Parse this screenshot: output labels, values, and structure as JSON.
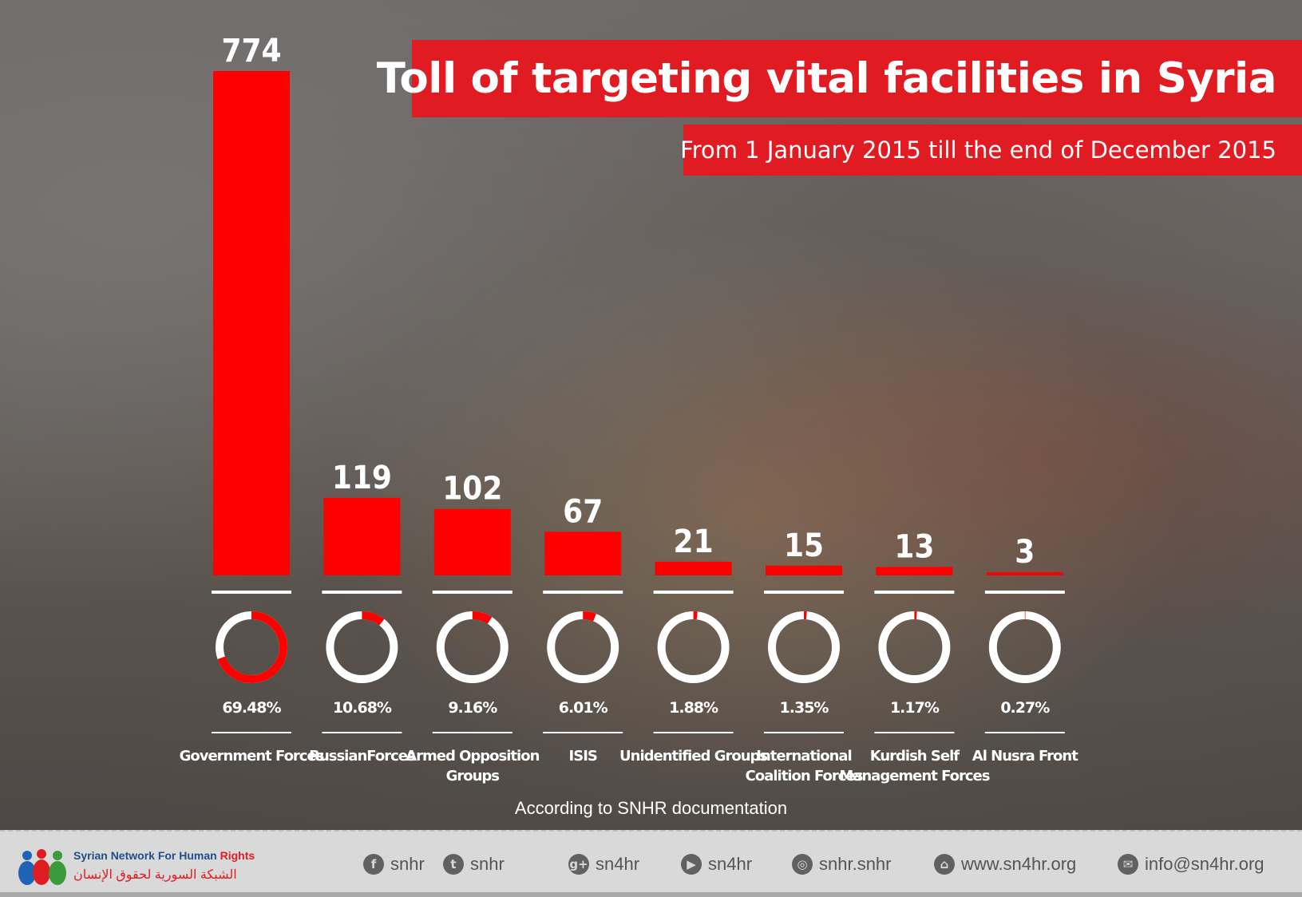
{
  "header": {
    "title": "Toll of targeting vital facilities in Syria",
    "subtitle": "From 1 January 2015 till the end of December 2015"
  },
  "chart_data": {
    "type": "bar",
    "title": "Toll of targeting vital facilities in Syria",
    "subtitle": "From 1 January 2015 till the end of December 2015",
    "categories": [
      "Government Forces",
      "RussianForces",
      "Armed Opposition Groups",
      "ISIS",
      "Unidentified Groups",
      "International Coalition Forces",
      "Kurdish Self Management Forces",
      "Al Nusra Front"
    ],
    "category_lines": [
      [
        "Government Forces"
      ],
      [
        "RussianForces"
      ],
      [
        "Armed Opposition",
        "Groups"
      ],
      [
        "ISIS"
      ],
      [
        "Unidentified Groups"
      ],
      [
        "International",
        "Coalition Forces"
      ],
      [
        "Kurdish Self",
        "Management Forces"
      ],
      [
        "Al Nusra Front"
      ]
    ],
    "values": [
      774,
      119,
      102,
      67,
      21,
      15,
      13,
      3
    ],
    "value_labels": [
      "774",
      "119",
      "102",
      "67",
      "21",
      "15",
      "13",
      "3"
    ],
    "percentages": [
      69.48,
      10.68,
      9.16,
      6.01,
      1.88,
      1.35,
      1.17,
      0.27
    ],
    "percentage_labels": [
      "69.48%",
      "10.68%",
      "9.16%",
      "6.01%",
      "1.88%",
      "1.35%",
      "1.17%",
      "0.27%"
    ],
    "ylim": [
      0,
      774
    ],
    "grid": false,
    "legend": "none",
    "bar_color": "#ff0000",
    "ring_color": "#ffffff"
  },
  "source_note": "According to SNHR documentation",
  "footer": {
    "org_name_en": "Syrian Network For Human",
    "org_name_en_accent": "Rights",
    "org_name_ar": "الشبكة السورية لحقوق الإنسان",
    "social": [
      {
        "icon": "facebook-icon",
        "glyph": "f",
        "label": "snhr"
      },
      {
        "icon": "twitter-icon",
        "glyph": "t",
        "label": "snhr"
      },
      {
        "icon": "google-plus-icon",
        "glyph": "g+",
        "label": "sn4hr"
      },
      {
        "icon": "youtube-icon",
        "glyph": "▶",
        "label": "sn4hr"
      },
      {
        "icon": "instagram-icon",
        "glyph": "◎",
        "label": "snhr.snhr"
      },
      {
        "icon": "home-icon",
        "glyph": "⌂",
        "label": "www.sn4hr.org"
      },
      {
        "icon": "email-icon",
        "glyph": "✉",
        "label": "info@sn4hr.org"
      }
    ]
  }
}
